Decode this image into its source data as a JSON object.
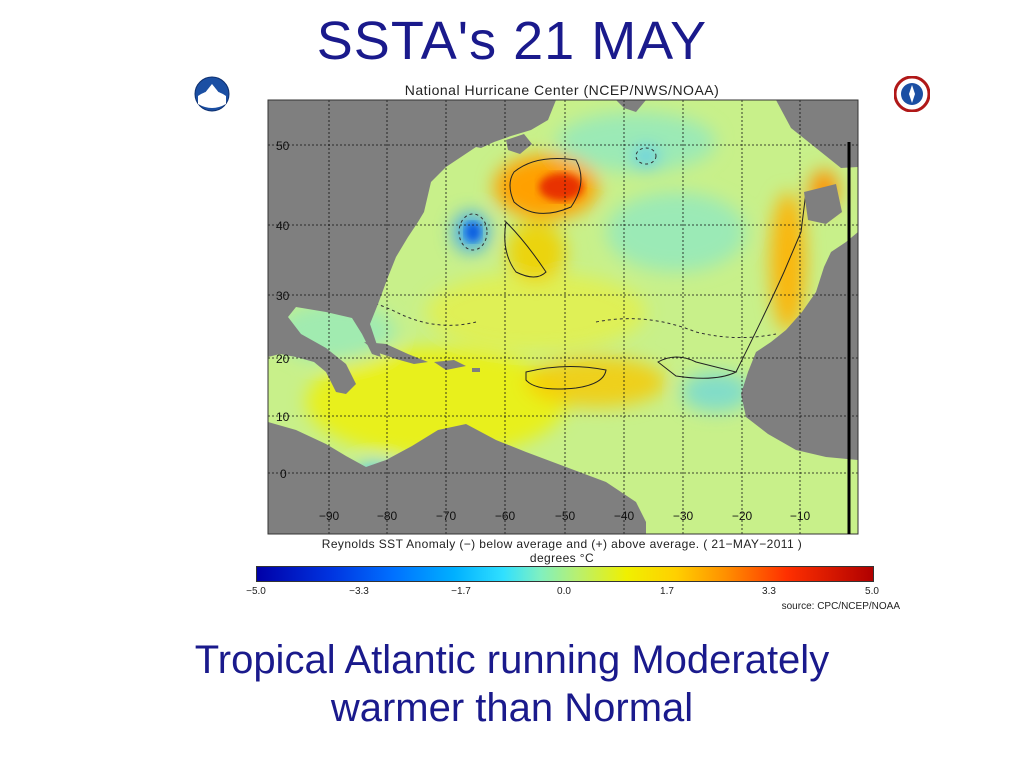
{
  "slide": {
    "title": "SSTA's  21  MAY",
    "subtitle_line1": "Tropical  Atlantic  running  Moderately",
    "subtitle_line2": "warmer than Normal"
  },
  "figure": {
    "title": "National Hurricane Center (NCEP/NWS/NOAA)",
    "caption_line1": "Reynolds SST Anomaly (−) below average and (+) above average. ( 21−MAY−2011 )",
    "caption_line2": "degrees °C",
    "source": "source:  CPC/NCEP/NOAA",
    "lat_labels": [
      "50",
      "40",
      "30",
      "20",
      "10",
      "0"
    ],
    "lon_labels": [
      "−90",
      "−80",
      "−70",
      "−60",
      "−50",
      "−40",
      "−30",
      "−20",
      "−10"
    ],
    "colorbar_ticks": [
      "−5.0",
      "−3.3",
      "−1.7",
      "0.0",
      "1.7",
      "3.3",
      "5.0"
    ],
    "colors": {
      "ocean": "#c8f08a",
      "land": "#7f7f7f",
      "warm": "#ff9a00",
      "hot": "#e23000",
      "cool": "#62d8d8",
      "cold": "#0a6ee0"
    },
    "logos": [
      "noaa-logo-icon",
      "nws-logo-icon"
    ]
  }
}
